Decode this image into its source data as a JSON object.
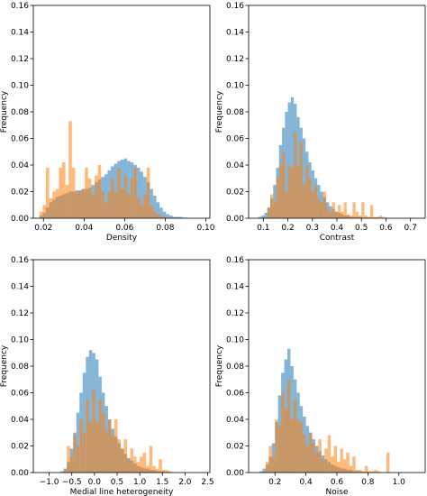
{
  "chart_data": [
    {
      "type": "histogram",
      "xlabel": "Density",
      "ylabel": "Frequency",
      "xlim": [
        0.015,
        0.102
      ],
      "ylim": [
        0,
        0.16
      ],
      "xticks": [
        0.02,
        0.04,
        0.06,
        0.08,
        0.1
      ],
      "xtick_labels": [
        "0.02",
        "0.04",
        "0.06",
        "0.08",
        "0.10"
      ],
      "yticks": [
        0,
        0.02,
        0.04,
        0.06,
        0.08,
        0.1,
        0.12,
        0.14,
        0.16
      ],
      "ytick_labels": [
        "0.00",
        "0.02",
        "0.04",
        "0.06",
        "0.08",
        "0.10",
        "0.12",
        "0.14",
        "0.16"
      ],
      "series": [
        {
          "color": "#1f77b4",
          "bin_start": 0.018,
          "bin_width": 0.0016,
          "values": [
            0.002,
            0.004,
            0.008,
            0.012,
            0.014,
            0.016,
            0.017,
            0.018,
            0.019,
            0.02,
            0.02,
            0.021,
            0.021,
            0.022,
            0.022,
            0.023,
            0.025,
            0.027,
            0.029,
            0.031,
            0.033,
            0.036,
            0.039,
            0.041,
            0.043,
            0.044,
            0.045,
            0.043,
            0.042,
            0.04,
            0.038,
            0.035,
            0.031,
            0.027,
            0.022,
            0.017,
            0.012,
            0.008,
            0.005,
            0.003,
            0.002,
            0.001,
            0.001,
            0.001,
            0.0005
          ]
        },
        {
          "color": "#ff7f0e",
          "bin_start": 0.018,
          "bin_width": 0.0016,
          "values": [
            0.005,
            0.01,
            0.038,
            0.015,
            0.02,
            0.022,
            0.038,
            0.042,
            0.025,
            0.073,
            0.038,
            0.02,
            0.02,
            0.022,
            0.038,
            0.03,
            0.018,
            0.032,
            0.04,
            0.02,
            0.012,
            0.02,
            0.03,
            0.02,
            0.038,
            0.022,
            0.032,
            0.018,
            0.03,
            0.038,
            0.015,
            0.01,
            0.018,
            0.038,
            0.01,
            0.005,
            0.003,
            0.002,
            0.001,
            0,
            0,
            0,
            0,
            0,
            0
          ]
        }
      ]
    },
    {
      "type": "histogram",
      "xlabel": "Contrast",
      "ylabel": "Frequency",
      "xlim": [
        0.04,
        0.76
      ],
      "ylim": [
        0,
        0.16
      ],
      "xticks": [
        0.1,
        0.2,
        0.3,
        0.4,
        0.5,
        0.6,
        0.7
      ],
      "xtick_labels": [
        "0.1",
        "0.2",
        "0.3",
        "0.4",
        "0.5",
        "0.6",
        "0.7"
      ],
      "yticks": [
        0,
        0.02,
        0.04,
        0.06,
        0.08,
        0.1,
        0.12,
        0.14,
        0.16
      ],
      "ytick_labels": [
        "0.00",
        "0.02",
        "0.04",
        "0.06",
        "0.08",
        "0.10",
        "0.12",
        "0.14",
        "0.16"
      ],
      "series": [
        {
          "color": "#1f77b4",
          "bin_start": 0.08,
          "bin_width": 0.012,
          "values": [
            0.001,
            0.002,
            0.004,
            0.008,
            0.015,
            0.025,
            0.038,
            0.055,
            0.068,
            0.08,
            0.087,
            0.091,
            0.086,
            0.076,
            0.068,
            0.06,
            0.05,
            0.042,
            0.036,
            0.03,
            0.025,
            0.02,
            0.016,
            0.012,
            0.009,
            0.007,
            0.005,
            0.004,
            0.003,
            0.002,
            0.002,
            0.001,
            0.001,
            0.001,
            0.001,
            0.0005,
            0.0005,
            0.0005,
            0.0003,
            0.0003,
            0.0002,
            0.0002,
            0.0001,
            0.0001,
            0.0001,
            0.0001,
            0.0001,
            0.0001,
            0.0001,
            0.0001
          ]
        },
        {
          "color": "#ff7f0e",
          "bin_start": 0.08,
          "bin_width": 0.012,
          "values": [
            0,
            0,
            0.001,
            0.008,
            0.018,
            0.012,
            0.03,
            0.04,
            0.05,
            0.02,
            0.04,
            0.038,
            0.065,
            0.04,
            0.058,
            0.025,
            0.04,
            0.03,
            0.02,
            0.025,
            0.015,
            0.012,
            0.02,
            0.008,
            0.005,
            0.012,
            0.005,
            0.01,
            0.005,
            0.012,
            0.003,
            0.002,
            0.012,
            0.005,
            0.002,
            0.012,
            0.002,
            0.001,
            0.01,
            0.001,
            0.001,
            0.002,
            0.001,
            0,
            0,
            0,
            0,
            0,
            0,
            0
          ]
        }
      ]
    },
    {
      "type": "histogram",
      "xlabel": "Medial line heterogeneity",
      "ylabel": "Frequency",
      "xlim": [
        -1.35,
        2.55
      ],
      "ylim": [
        0,
        0.16
      ],
      "xticks": [
        -1.0,
        -0.5,
        0.0,
        0.5,
        1.0,
        1.5,
        2.0,
        2.5
      ],
      "xtick_labels": [
        "−1.0",
        "−0.5",
        "0.0",
        "0.5",
        "1.0",
        "1.5",
        "2.0",
        "2.5"
      ],
      "yticks": [
        0,
        0.02,
        0.04,
        0.06,
        0.08,
        0.1,
        0.12,
        0.14,
        0.16
      ],
      "ytick_labels": [
        "0.00",
        "0.02",
        "0.04",
        "0.06",
        "0.08",
        "0.10",
        "0.12",
        "0.14",
        "0.16"
      ],
      "series": [
        {
          "color": "#1f77b4",
          "bin_start": -0.75,
          "bin_width": 0.07,
          "values": [
            0.001,
            0.003,
            0.008,
            0.018,
            0.03,
            0.045,
            0.06,
            0.075,
            0.087,
            0.092,
            0.09,
            0.085,
            0.072,
            0.06,
            0.05,
            0.04,
            0.033,
            0.027,
            0.022,
            0.018,
            0.014,
            0.011,
            0.009,
            0.007,
            0.005,
            0.004,
            0.003,
            0.003,
            0.002,
            0.002,
            0.001,
            0.001,
            0.001,
            0.0005,
            0.0005,
            0.0003
          ]
        },
        {
          "color": "#ff7f0e",
          "bin_start": -0.75,
          "bin_width": 0.07,
          "values": [
            0,
            0.002,
            0.02,
            0.012,
            0.028,
            0.02,
            0.04,
            0.03,
            0.055,
            0.038,
            0.062,
            0.038,
            0.055,
            0.045,
            0.032,
            0.04,
            0.028,
            0.04,
            0.025,
            0.018,
            0.025,
            0.01,
            0.018,
            0.012,
            0.008,
            0.012,
            0.015,
            0.005,
            0.02,
            0.005,
            0.003,
            0.01,
            0.002,
            0.002,
            0.001,
            0
          ]
        }
      ]
    },
    {
      "type": "histogram",
      "xlabel": "Noise",
      "ylabel": "Frequency",
      "xlim": [
        0.03,
        1.17
      ],
      "ylim": [
        0,
        0.16
      ],
      "xticks": [
        0.2,
        0.4,
        0.6,
        0.8,
        1.0
      ],
      "xtick_labels": [
        "0.2",
        "0.4",
        "0.6",
        "0.8",
        "1.0"
      ],
      "yticks": [
        0,
        0.02,
        0.04,
        0.06,
        0.08,
        0.1,
        0.12,
        0.14,
        0.16
      ],
      "ytick_labels": [
        "0.00",
        "0.02",
        "0.04",
        "0.06",
        "0.08",
        "0.10",
        "0.12",
        "0.14",
        "0.16"
      ],
      "series": [
        {
          "color": "#1f77b4",
          "bin_start": 0.1,
          "bin_width": 0.02,
          "values": [
            0.001,
            0.003,
            0.006,
            0.012,
            0.022,
            0.038,
            0.058,
            0.075,
            0.085,
            0.093,
            0.08,
            0.07,
            0.06,
            0.05,
            0.042,
            0.035,
            0.03,
            0.025,
            0.02,
            0.016,
            0.013,
            0.01,
            0.008,
            0.006,
            0.005,
            0.004,
            0.003,
            0.003,
            0.002,
            0.002,
            0.001,
            0.001,
            0.001,
            0.0005,
            0.0005,
            0.0003,
            0.0003,
            0.0002,
            0.0002,
            0.0001,
            0.0001,
            0.0001
          ]
        },
        {
          "color": "#ff7f0e",
          "bin_start": 0.1,
          "bin_width": 0.02,
          "values": [
            0,
            0.001,
            0.008,
            0.02,
            0.012,
            0.04,
            0.035,
            0.06,
            0.048,
            0.07,
            0.04,
            0.055,
            0.04,
            0.038,
            0.028,
            0.02,
            0.03,
            0.022,
            0.015,
            0.025,
            0.01,
            0.018,
            0.028,
            0.012,
            0.02,
            0.008,
            0.018,
            0.01,
            0.015,
            0.005,
            0.012,
            0.002,
            0.002,
            0.001,
            0.005,
            0.001,
            0.001,
            0.002,
            0.001,
            0.0,
            0.0,
            0.015
          ]
        }
      ]
    }
  ]
}
